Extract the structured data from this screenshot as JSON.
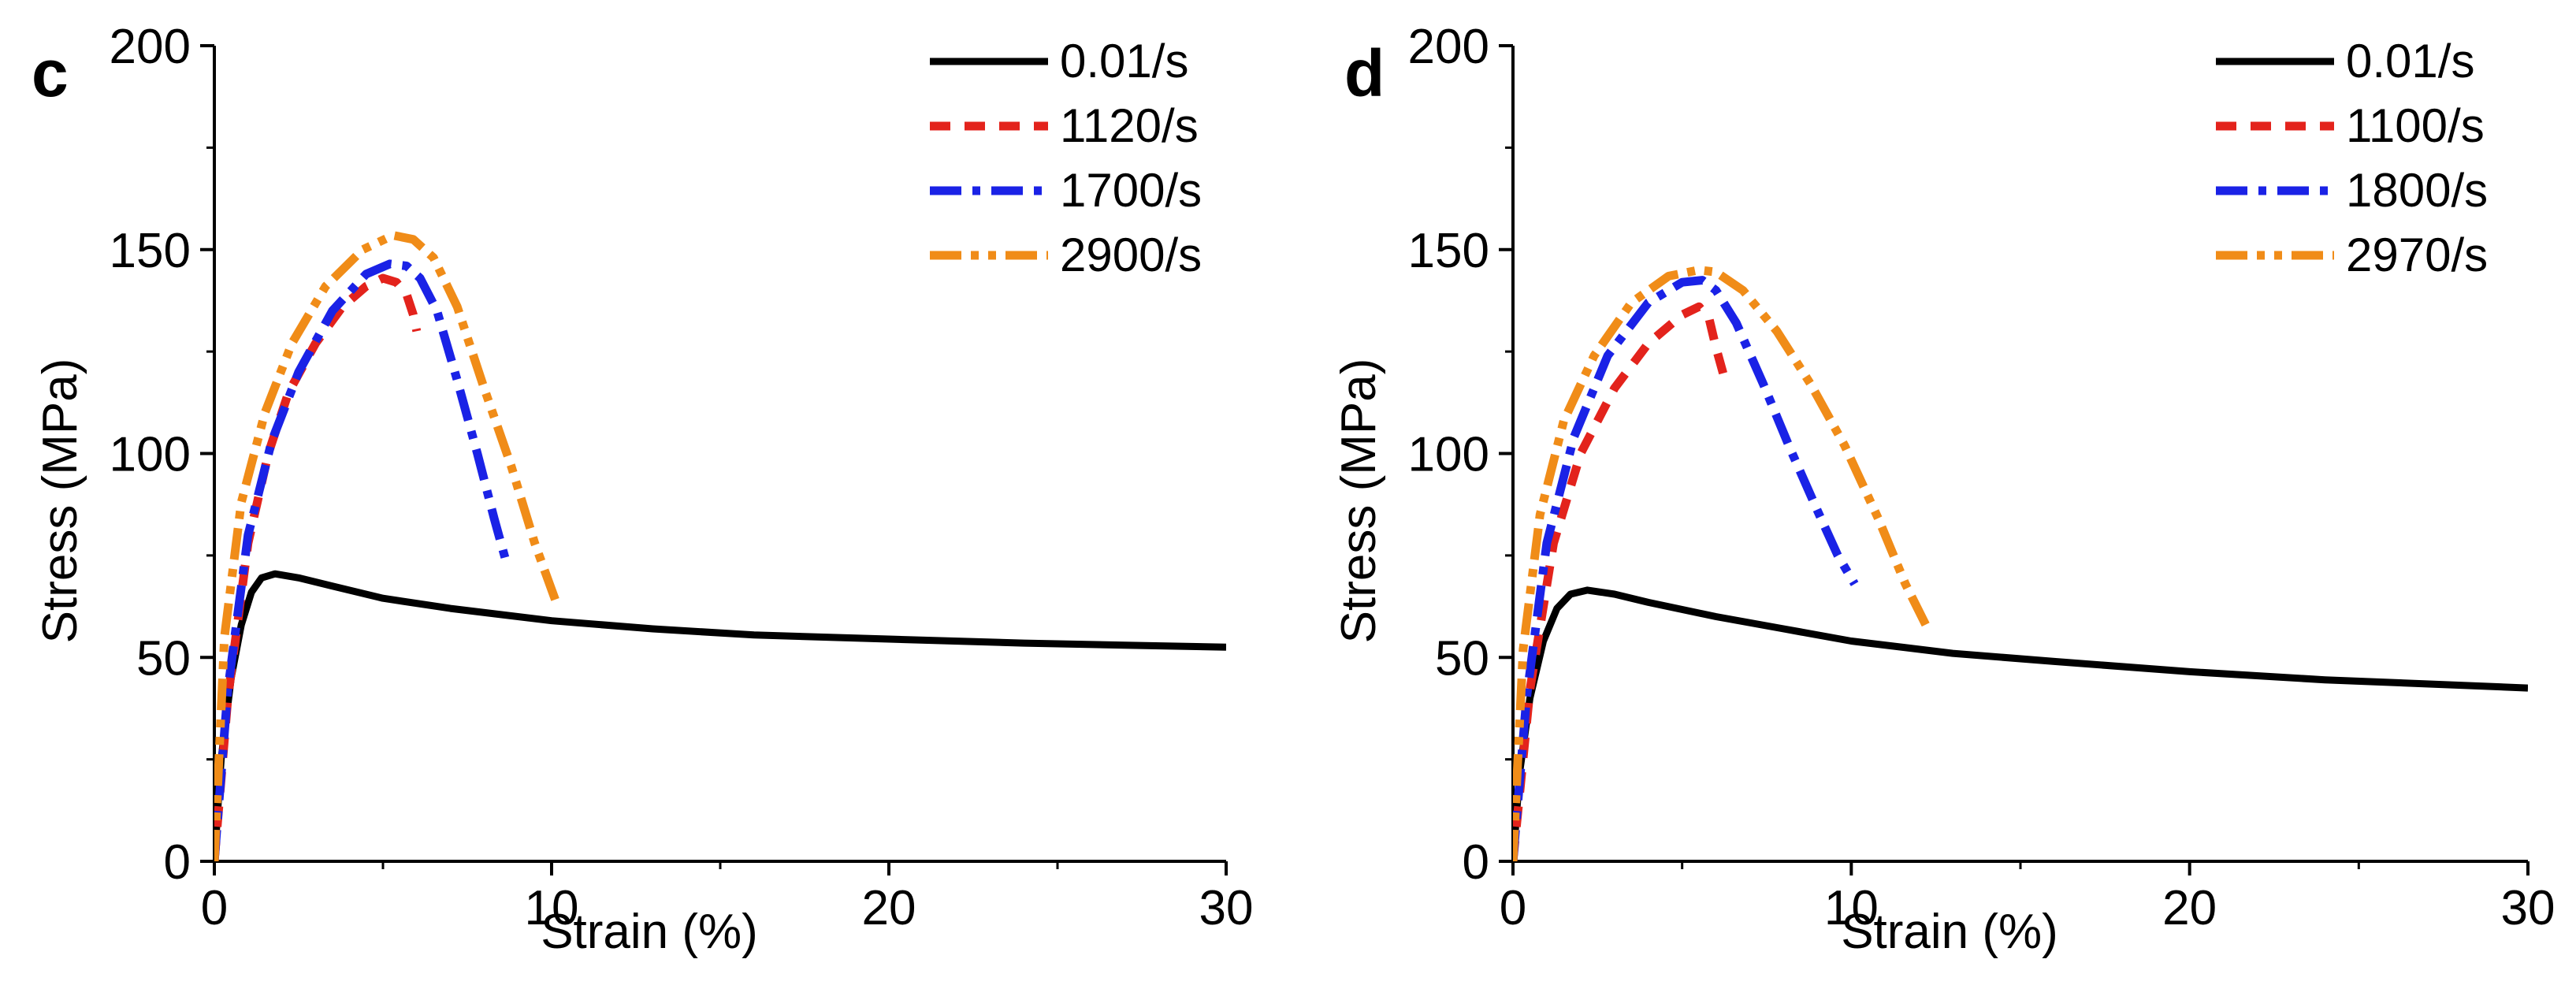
{
  "chart_data": [
    {
      "type": "line",
      "panel_label": "c",
      "xlabel": "Strain (%)",
      "ylabel": "Stress (MPa)",
      "xlim": [
        0,
        30
      ],
      "ylim": [
        0,
        200
      ],
      "xticks": [
        0,
        10,
        20,
        30
      ],
      "yticks": [
        0,
        50,
        100,
        150,
        200
      ],
      "legend_position": "top-right",
      "series": [
        {
          "name": "0.01/s",
          "color": "#000000",
          "style": "solid",
          "x": [
            0,
            0.2,
            0.5,
            0.8,
            1.1,
            1.4,
            1.8,
            2.5,
            3.5,
            5,
            7,
            10,
            13,
            16,
            20,
            24,
            27,
            30
          ],
          "y": [
            0,
            25,
            45,
            58,
            66,
            69.5,
            70.5,
            69.5,
            67.5,
            64.5,
            62,
            59,
            57,
            55.5,
            54.5,
            53.5,
            53,
            52.5
          ]
        },
        {
          "name": "1120/s",
          "color": "#e3231c",
          "style": "dashed",
          "x": [
            0,
            0.4,
            1,
            1.6,
            2.2,
            3,
            3.8,
            4.5,
            5,
            5.4,
            5.7,
            5.9,
            6.0
          ],
          "y": [
            0,
            40,
            78,
            100,
            115,
            127,
            136,
            141,
            143,
            142,
            139,
            134,
            130
          ]
        },
        {
          "name": "1700/s",
          "color": "#1a22e6",
          "style": "dashdot",
          "x": [
            0,
            0.4,
            1,
            1.7,
            2.5,
            3.5,
            4.5,
            5.2,
            5.7,
            6.1,
            6.6,
            7.2,
            7.8,
            8.3,
            8.7
          ],
          "y": [
            0,
            42,
            80,
            103,
            120,
            135,
            144,
            146.5,
            146,
            143,
            135,
            118,
            100,
            84,
            72
          ]
        },
        {
          "name": "2900/s",
          "color": "#f08c18",
          "style": "dashdotdot",
          "x": [
            0,
            0.3,
            0.8,
            1.5,
            2.3,
            3.3,
            4.4,
            5.3,
            5.9,
            6.5,
            7.2,
            8.0,
            8.8,
            9.5,
            10.2
          ],
          "y": [
            0,
            55,
            88,
            110,
            127,
            141,
            150,
            153.5,
            152.5,
            148,
            136,
            116,
            97,
            78,
            62
          ]
        }
      ]
    },
    {
      "type": "line",
      "panel_label": "d",
      "xlabel": "Strain (%)",
      "ylabel": "Stress (MPa)",
      "xlim": [
        0,
        30
      ],
      "ylim": [
        0,
        200
      ],
      "xticks": [
        0,
        10,
        20,
        30
      ],
      "yticks": [
        0,
        50,
        100,
        150,
        200
      ],
      "legend_position": "top-right",
      "series": [
        {
          "name": "0.01/s",
          "color": "#000000",
          "style": "solid",
          "x": [
            0,
            0.2,
            0.5,
            0.9,
            1.3,
            1.7,
            2.2,
            3,
            4,
            6,
            8,
            10,
            13,
            16,
            20,
            24,
            27,
            30
          ],
          "y": [
            0,
            22,
            40,
            54,
            62,
            65.5,
            66.5,
            65.5,
            63.5,
            60,
            57,
            54,
            51,
            49,
            46.5,
            44.5,
            43.5,
            42.5
          ]
        },
        {
          "name": "1100/s",
          "color": "#e3231c",
          "style": "dashed",
          "x": [
            0,
            0.5,
            1.2,
            2,
            3,
            4,
            5,
            5.5,
            5.8,
            6.0,
            6.2,
            6.3
          ],
          "y": [
            0,
            42,
            78,
            100,
            116,
            127,
            134,
            136,
            133,
            126,
            120,
            117
          ]
        },
        {
          "name": "1800/s",
          "color": "#1a22e6",
          "style": "dashdot",
          "x": [
            0,
            0.4,
            1,
            1.8,
            2.8,
            4,
            5,
            5.6,
            6.0,
            6.6,
            7.4,
            8.2,
            9.0,
            9.6,
            10.1
          ],
          "y": [
            0,
            40,
            78,
            104,
            124,
            137,
            142,
            142.5,
            140,
            132,
            117,
            101,
            86,
            75,
            68
          ]
        },
        {
          "name": "2970/s",
          "color": "#f08c18",
          "style": "dashdotdot",
          "x": [
            0,
            0.3,
            0.8,
            1.5,
            2.4,
            3.5,
            4.6,
            5.5,
            6.0,
            6.8,
            7.8,
            8.8,
            9.8,
            10.8,
            11.6,
            12.2
          ],
          "y": [
            0,
            52,
            85,
            108,
            124,
            137,
            143.5,
            145,
            144.5,
            140,
            130,
            117,
            102,
            84,
            68,
            58
          ]
        }
      ]
    }
  ]
}
